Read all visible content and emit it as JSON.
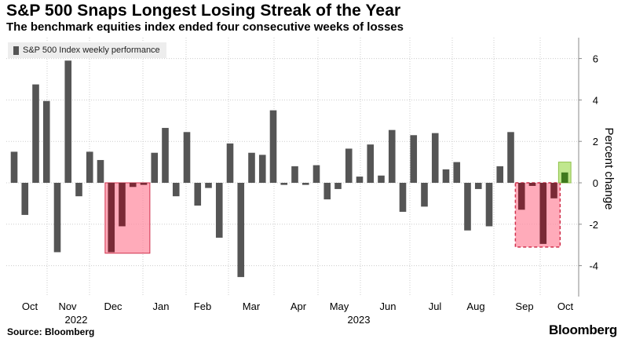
{
  "chart_data": {
    "type": "bar",
    "title": "S&P 500 Snaps Longest Losing Streak of the Year",
    "subtitle": "The benchmark equities index ended four consecutive weeks of losses",
    "series": [
      {
        "name": "S&P 500 Index weekly performance",
        "values": [
          1.5,
          -1.55,
          4.75,
          3.95,
          -3.35,
          5.9,
          -0.65,
          1.5,
          1.1,
          -3.35,
          -2.1,
          -0.2,
          -0.1,
          1.45,
          2.65,
          -0.65,
          2.45,
          -1.1,
          -0.25,
          -2.65,
          1.9,
          -4.55,
          1.45,
          1.35,
          3.5,
          -0.1,
          0.8,
          -0.1,
          0.85,
          -0.8,
          -0.3,
          1.65,
          0.3,
          1.85,
          0.35,
          2.55,
          -1.4,
          2.3,
          -1.15,
          2.4,
          0.65,
          1.0,
          -2.3,
          -0.3,
          -2.1,
          0.8,
          2.45,
          -1.3,
          -0.15,
          -2.95,
          -0.75,
          0.5
        ]
      }
    ],
    "x_tick_labels": [
      "Oct",
      "Nov",
      "Dec",
      "Jan",
      "Feb",
      "Mar",
      "Apr",
      "May",
      "Jun",
      "Jul",
      "Aug",
      "Sep",
      "Oct"
    ],
    "year_labels": [
      "2022",
      "2023"
    ],
    "ylabel": "Percent change",
    "y_ticks": [
      6,
      4,
      2,
      0,
      -2,
      -4
    ],
    "ylim": [
      -5.5,
      7
    ],
    "annotations": [
      {
        "type": "box",
        "from_index": 9,
        "to_index": 12,
        "y_range": [
          -3.4,
          0
        ],
        "style": "solid",
        "color": "#ff8fa3"
      },
      {
        "type": "box",
        "from_index": 47,
        "to_index": 50,
        "y_range": [
          -3.1,
          0
        ],
        "style": "dashed",
        "color": "#ff8fa3"
      },
      {
        "type": "box",
        "from_index": 51,
        "to_index": 51,
        "y_range": [
          0,
          1.0
        ],
        "style": "solid",
        "color": "#b5e37a"
      }
    ],
    "colors": {
      "bar": "#555555",
      "bar_in_red_box": "#7a2a36",
      "bar_in_green_box": "#3f7a1e",
      "gridline": "#cccccc",
      "text": "#000000"
    }
  },
  "legend": {
    "label": "S&P 500 Index weekly performance"
  },
  "footer": {
    "source": "Source: Bloomberg",
    "brand": "Bloomberg"
  }
}
